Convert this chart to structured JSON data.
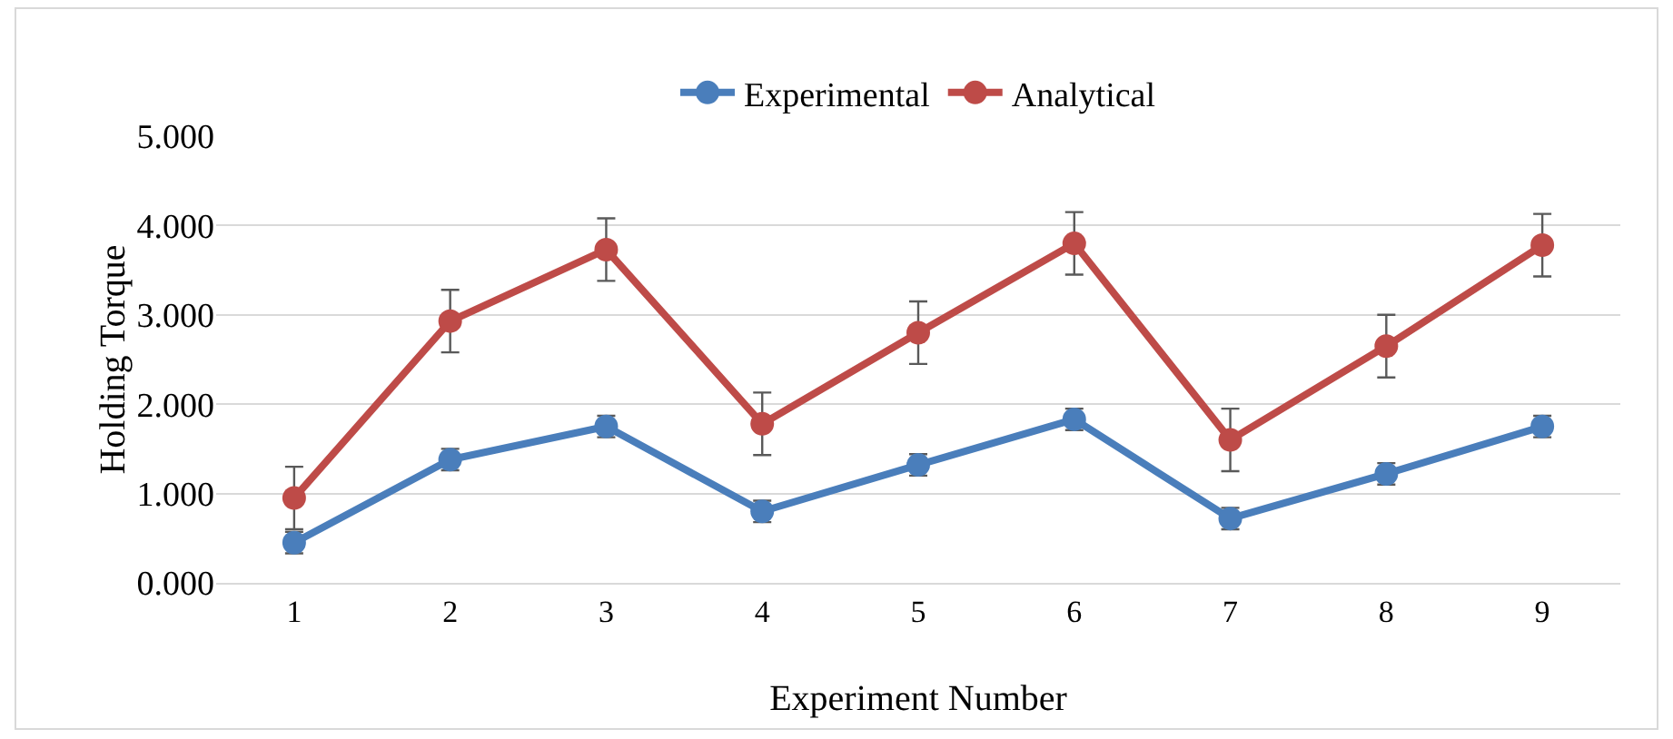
{
  "chart_data": {
    "type": "line",
    "xlabel": "Experiment Number",
    "ylabel": "Holding Torque",
    "categories": [
      "1",
      "2",
      "3",
      "4",
      "5",
      "6",
      "7",
      "8",
      "9"
    ],
    "series": [
      {
        "name": "Experimental",
        "color": "#4a7ebb",
        "values": [
          0.45,
          1.38,
          1.75,
          0.8,
          1.32,
          1.83,
          0.72,
          1.22,
          1.75
        ],
        "errors": [
          0.12,
          0.12,
          0.12,
          0.12,
          0.12,
          0.12,
          0.12,
          0.12,
          0.12
        ]
      },
      {
        "name": "Analytical",
        "color": "#be4b48",
        "values": [
          0.95,
          2.93,
          3.73,
          1.78,
          2.8,
          3.8,
          1.6,
          2.65,
          3.78
        ],
        "errors": [
          0.35,
          0.35,
          0.35,
          0.35,
          0.35,
          0.35,
          0.35,
          0.35,
          0.35
        ]
      }
    ],
    "ylim": [
      0,
      5
    ],
    "yticks": [
      {
        "value": 0,
        "label": "0.000"
      },
      {
        "value": 1,
        "label": "1.000"
      },
      {
        "value": 2,
        "label": "2.000"
      },
      {
        "value": 3,
        "label": "3.000"
      },
      {
        "value": 4,
        "label": "4.000"
      },
      {
        "value": 5,
        "label": "5.000"
      }
    ],
    "grid": "y",
    "legend": "top",
    "marker": "circle",
    "line_style": "solid"
  }
}
